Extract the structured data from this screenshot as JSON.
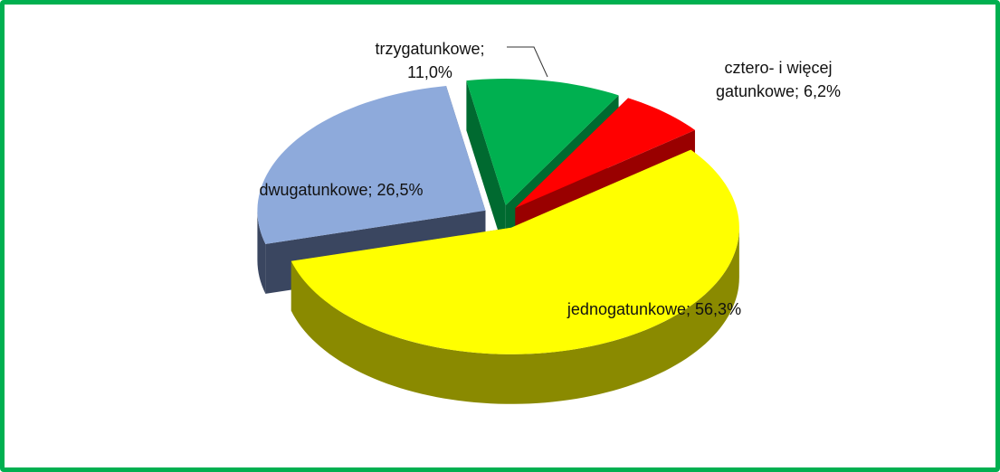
{
  "chart_data": {
    "type": "pie3d",
    "values": [
      56.3,
      26.5,
      11.0,
      6.2
    ],
    "value_labels": [
      "jednogatunkowe; 56,3%",
      "dwugatunkowe; 26,5%",
      "trzygatunkowe; 11,0%",
      "cztero- i więcej gatunkowe; 6,2%"
    ],
    "colors": [
      "#ffff00",
      "#8eaadb",
      "#00b050",
      "#ff0000"
    ],
    "side_colors": [
      "#8a8a00",
      "#3a4660",
      "#006a30",
      "#990000"
    ]
  }
}
